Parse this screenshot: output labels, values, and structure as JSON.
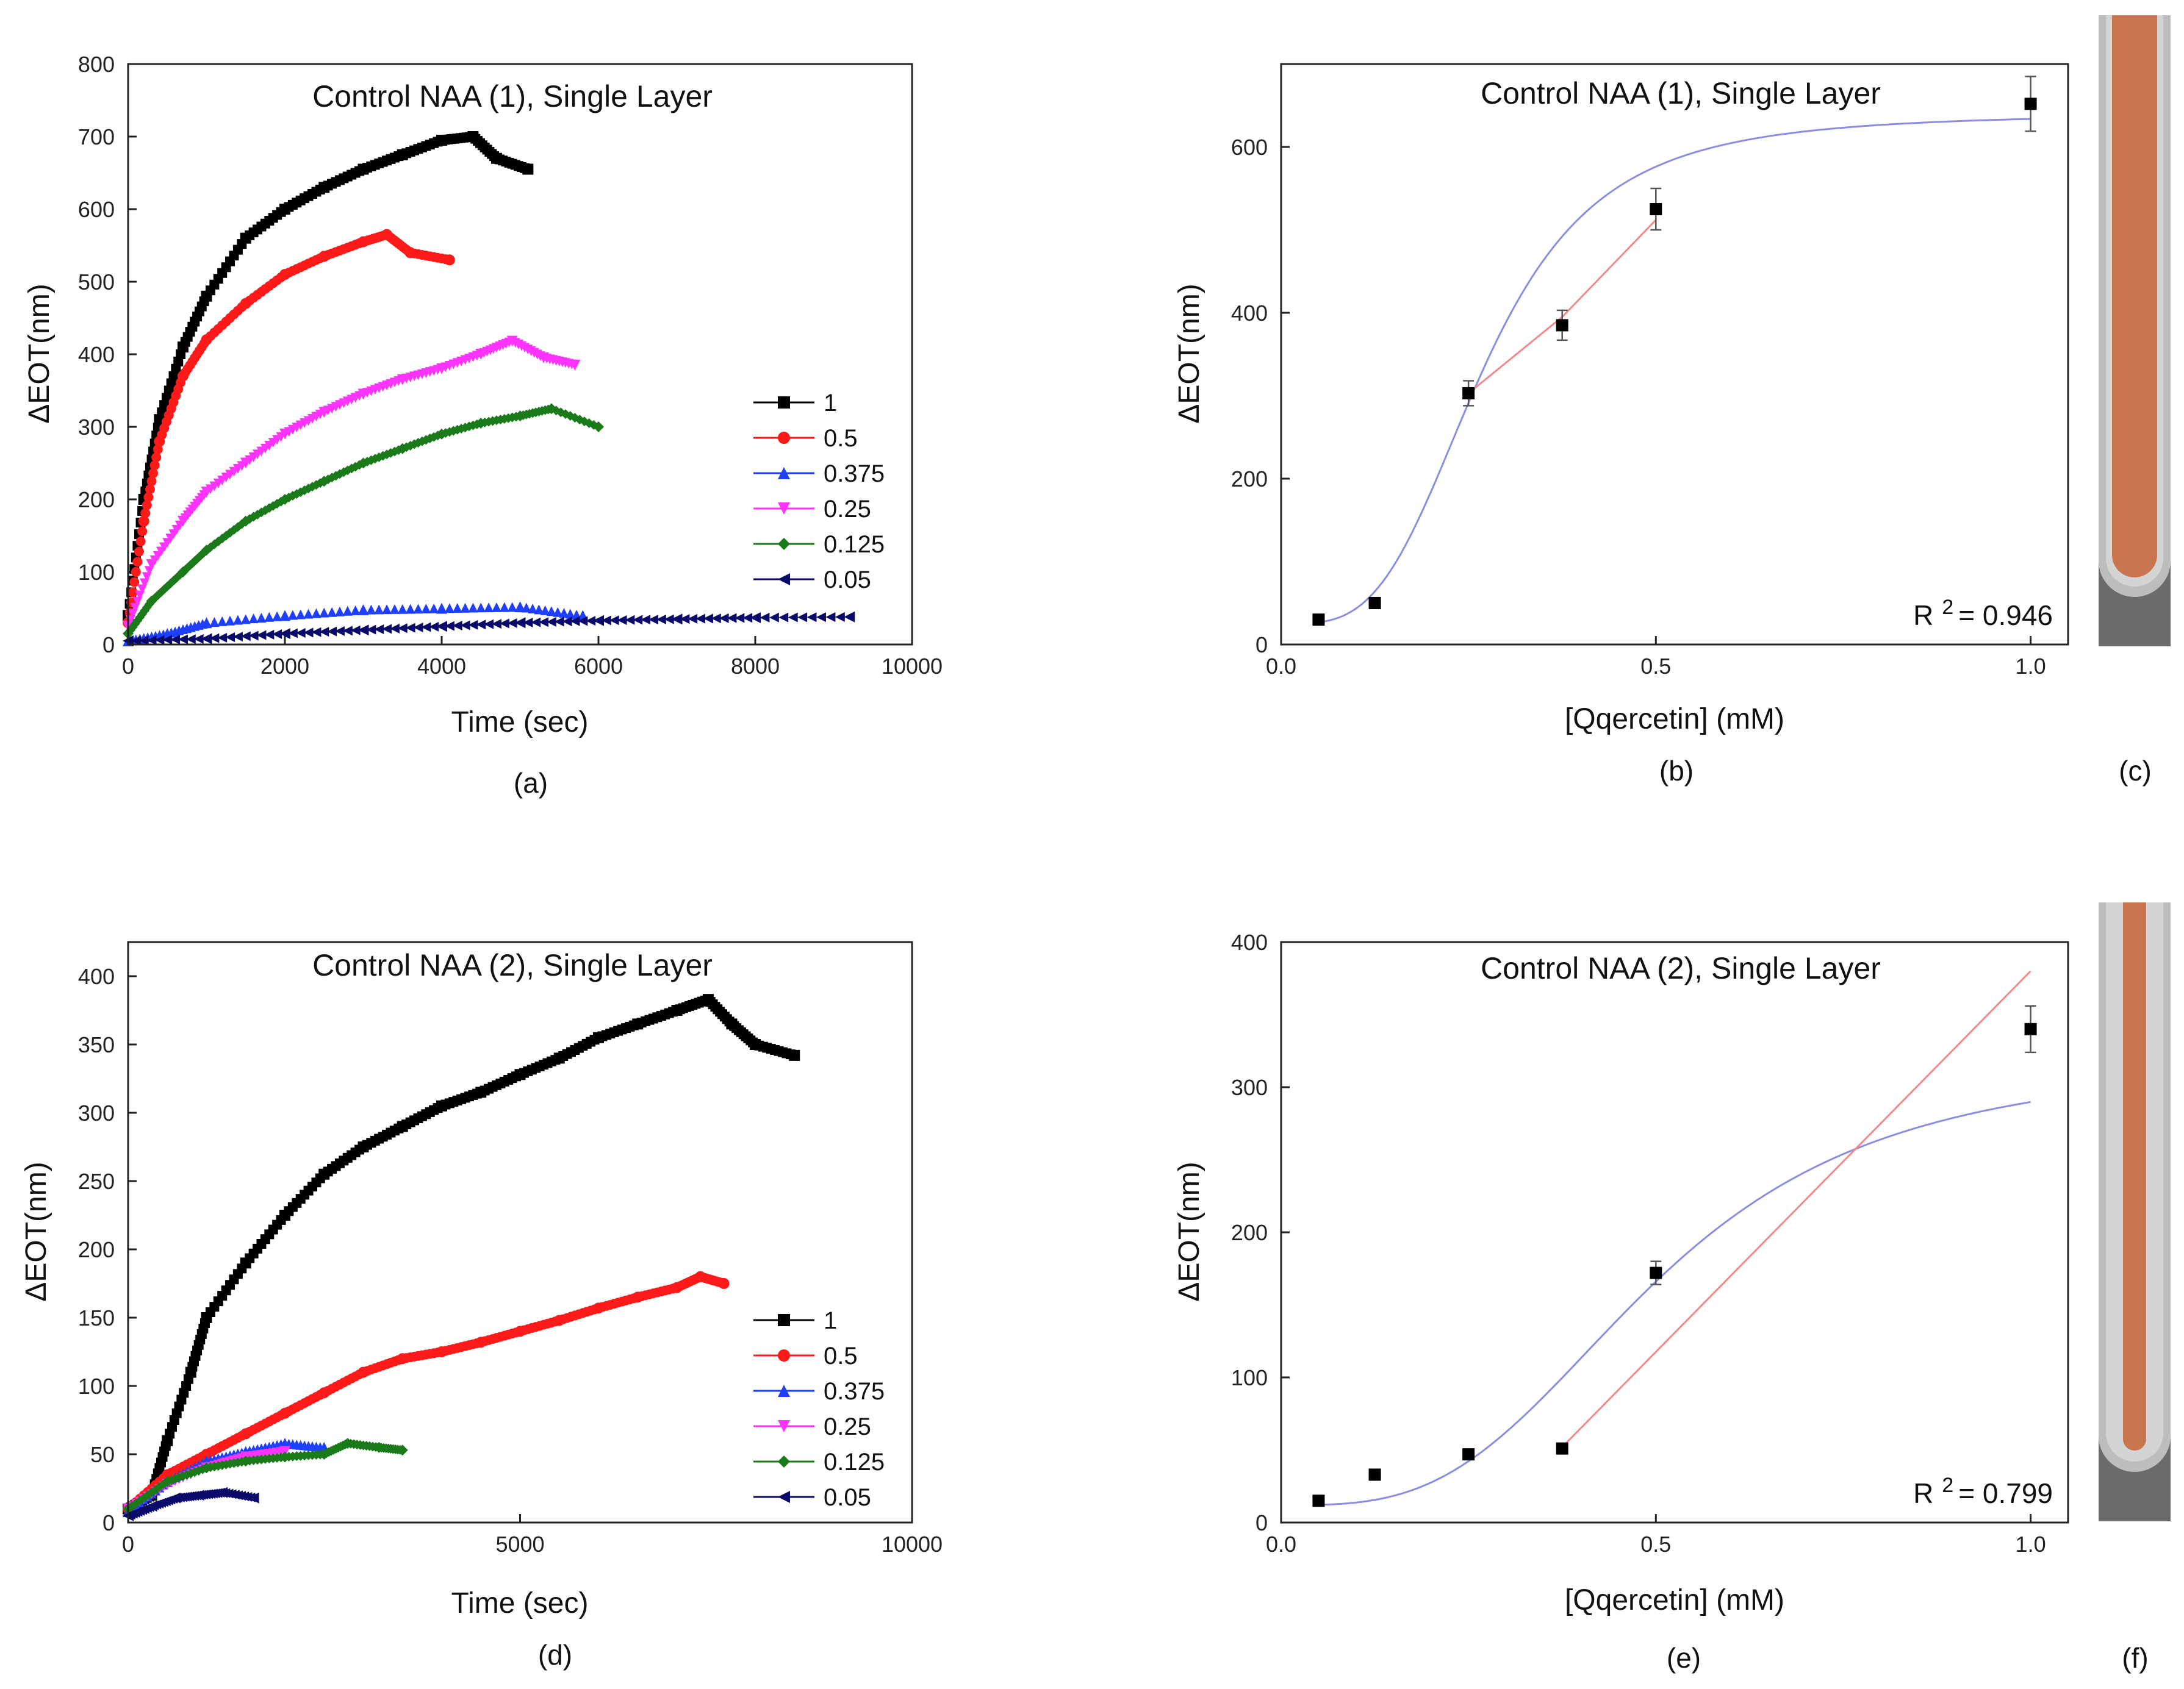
{
  "panel_labels": [
    "(a)",
    "(b)",
    "(c)",
    "(d)",
    "(e)",
    "(f)"
  ],
  "legend_labels": [
    "1",
    "0.5",
    "0.375",
    "0.25",
    "0.125",
    "0.05"
  ],
  "legend_colors": [
    "#000000",
    "#ff1a1a",
    "#1f3fff",
    "#ff33ff",
    "#1a7a1a",
    "#0a0a6a"
  ],
  "legend_markers": [
    "square",
    "circle",
    "triangle-up",
    "triangle-down",
    "diamond",
    "triangle-left"
  ],
  "chart_data": [
    {
      "id": "a",
      "type": "scatter",
      "title": "Control NAA (1), Single Layer",
      "xlabel": "Time (sec)",
      "ylabel": "ΔEOT(nm)",
      "xlim": [
        0,
        10000
      ],
      "ylim": [
        0,
        800
      ],
      "xticks": [
        0,
        2000,
        4000,
        6000,
        8000,
        10000
      ],
      "yticks": [
        0,
        100,
        200,
        300,
        400,
        500,
        600,
        700,
        800
      ],
      "series": [
        {
          "name": "1",
          "x": [
            0,
            200,
            400,
            700,
            1000,
            1500,
            2000,
            2500,
            3000,
            3500,
            4000,
            4400,
            4700,
            5100
          ],
          "y": [
            40,
            200,
            310,
            410,
            480,
            560,
            600,
            630,
            655,
            675,
            695,
            700,
            670,
            655
          ]
        },
        {
          "name": "0.5",
          "x": [
            0,
            200,
            400,
            700,
            1000,
            1500,
            2000,
            2500,
            3000,
            3300,
            3600,
            4100
          ],
          "y": [
            30,
            170,
            280,
            370,
            420,
            470,
            510,
            535,
            555,
            565,
            540,
            530
          ]
        },
        {
          "name": "0.375",
          "x": [
            0,
            500,
            1000,
            2000,
            3000,
            4000,
            5000,
            5800
          ],
          "y": [
            5,
            15,
            30,
            40,
            48,
            50,
            52,
            40
          ]
        },
        {
          "name": "0.25",
          "x": [
            0,
            300,
            700,
            1000,
            1500,
            2000,
            2500,
            3000,
            3500,
            4000,
            4500,
            4900,
            5300,
            5700
          ],
          "y": [
            25,
            110,
            170,
            210,
            250,
            290,
            320,
            345,
            365,
            380,
            400,
            418,
            395,
            385
          ]
        },
        {
          "name": "0.125",
          "x": [
            0,
            300,
            700,
            1000,
            1500,
            2000,
            2500,
            3000,
            3500,
            4000,
            4500,
            5000,
            5400,
            6000
          ],
          "y": [
            15,
            60,
            100,
            130,
            170,
            200,
            225,
            250,
            270,
            290,
            305,
            315,
            325,
            300
          ]
        },
        {
          "name": "0.05",
          "x": [
            0,
            1000,
            2000,
            3000,
            4000,
            5000,
            6000,
            7000,
            8000,
            9200
          ],
          "y": [
            5,
            8,
            15,
            20,
            25,
            30,
            33,
            35,
            37,
            38
          ]
        }
      ]
    },
    {
      "id": "b",
      "type": "scatter",
      "title": "Control NAA (1), Single Layer",
      "xlabel": "[Qqercetin] (mM)",
      "ylabel": "ΔEOT(nm)",
      "xlim": [
        0.0,
        1.05
      ],
      "ylim": [
        0,
        700
      ],
      "xticks": [
        0.0,
        0.5,
        1.0
      ],
      "yticks": [
        0,
        200,
        400,
        600
      ],
      "points": {
        "x": [
          0.05,
          0.125,
          0.25,
          0.375,
          0.5,
          1.0
        ],
        "y": [
          30,
          50,
          303,
          385,
          525,
          652
        ],
        "err": [
          0,
          0,
          15,
          18,
          25,
          33
        ]
      },
      "linear_fit": {
        "x": [
          0.25,
          0.375,
          0.5
        ],
        "y": [
          303,
          395,
          512
        ]
      },
      "sigmoid_fit": {
        "bottom": 25,
        "top": 640,
        "ec50": 0.27,
        "hill": 3.5
      },
      "r2_label": "R",
      "r2_exponent": "2",
      "r2_value": "= 0.946"
    },
    {
      "id": "d",
      "type": "scatter",
      "title": "Control NAA (2), Single Layer",
      "xlabel": "Time (sec)",
      "ylabel": "ΔEOT(nm)",
      "xlim": [
        0,
        10000
      ],
      "ylim": [
        0,
        425
      ],
      "xticks": [
        0,
        5000,
        10000
      ],
      "yticks": [
        0,
        50,
        100,
        150,
        200,
        250,
        300,
        350,
        400
      ],
      "series": [
        {
          "name": "1",
          "x": [
            0,
            300,
            500,
            800,
            1000,
            1500,
            2000,
            2500,
            3000,
            3500,
            4000,
            4500,
            5000,
            5500,
            6000,
            6500,
            7000,
            7400,
            7700,
            8000,
            8500
          ],
          "y": [
            10,
            20,
            60,
            110,
            150,
            190,
            225,
            255,
            275,
            290,
            305,
            315,
            328,
            340,
            355,
            365,
            375,
            383,
            365,
            350,
            342
          ]
        },
        {
          "name": "0.5",
          "x": [
            0,
            500,
            1000,
            1500,
            2000,
            2500,
            3000,
            3500,
            4000,
            4500,
            5000,
            5500,
            6000,
            6500,
            7000,
            7300,
            7600
          ],
          "y": [
            10,
            35,
            50,
            65,
            80,
            95,
            110,
            120,
            125,
            132,
            140,
            148,
            157,
            165,
            172,
            180,
            175
          ]
        },
        {
          "name": "0.375",
          "x": [
            0,
            500,
            1000,
            1500,
            2000,
            2500
          ],
          "y": [
            8,
            30,
            45,
            52,
            58,
            55
          ]
        },
        {
          "name": "0.25",
          "x": [
            0,
            500,
            1000,
            1500,
            2000
          ],
          "y": [
            10,
            28,
            40,
            48,
            52
          ]
        },
        {
          "name": "0.125",
          "x": [
            0,
            500,
            1000,
            1500,
            2000,
            2500,
            2800,
            3200,
            3500
          ],
          "y": [
            10,
            30,
            40,
            45,
            48,
            50,
            58,
            55,
            53
          ]
        },
        {
          "name": "0.05",
          "x": [
            0,
            300,
            600,
            900,
            1200,
            1600
          ],
          "y": [
            5,
            12,
            18,
            20,
            22,
            18
          ]
        }
      ]
    },
    {
      "id": "e",
      "type": "scatter",
      "title": "Control NAA (2), Single Layer",
      "xlabel": "[Qqercetin] (mM)",
      "ylabel": "ΔEOT(nm)",
      "xlim": [
        0.0,
        1.05
      ],
      "ylim": [
        0,
        400
      ],
      "xticks": [
        0.0,
        0.5,
        1.0
      ],
      "yticks": [
        0,
        100,
        200,
        300,
        400
      ],
      "points": {
        "x": [
          0.05,
          0.125,
          0.25,
          0.375,
          0.5,
          1.0
        ],
        "y": [
          15,
          33,
          47,
          51,
          172,
          340
        ],
        "err": [
          0,
          0,
          0,
          0,
          8,
          16
        ]
      },
      "linear_fit": {
        "x": [
          0.375,
          1.0
        ],
        "y": [
          52,
          380
        ]
      },
      "sigmoid_fit": {
        "bottom": 12,
        "top": 320,
        "ec50": 0.5,
        "hill": 3.2
      },
      "r2_label": "R",
      "r2_exponent": "2",
      "r2_value": "= 0.799"
    }
  ]
}
